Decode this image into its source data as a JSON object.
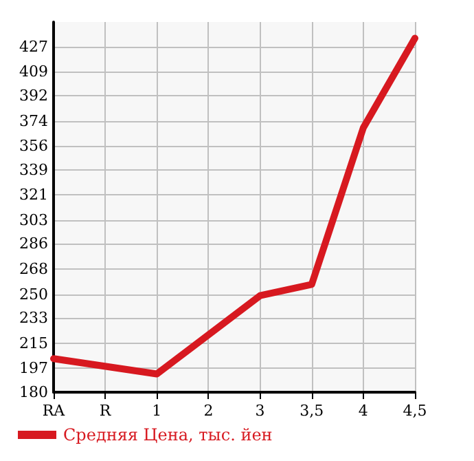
{
  "chart_data": {
    "type": "line",
    "categories": [
      "RA",
      "R",
      "1",
      "2",
      "3",
      "3,5",
      "4",
      "4,5"
    ],
    "series": [
      {
        "name": "Средняя Цена, тыс. йен",
        "color": "#d71920",
        "values": [
          204,
          null,
          193,
          null,
          249,
          257,
          369,
          433
        ]
      }
    ],
    "ylim": [
      180,
      444.6
    ],
    "yticks": [
      180,
      197,
      215,
      233,
      250,
      268,
      286,
      303,
      321,
      339,
      356,
      374,
      392,
      409,
      427
    ],
    "grid": true,
    "legend": "bottom left",
    "marker": "none",
    "line_style": "solid"
  }
}
